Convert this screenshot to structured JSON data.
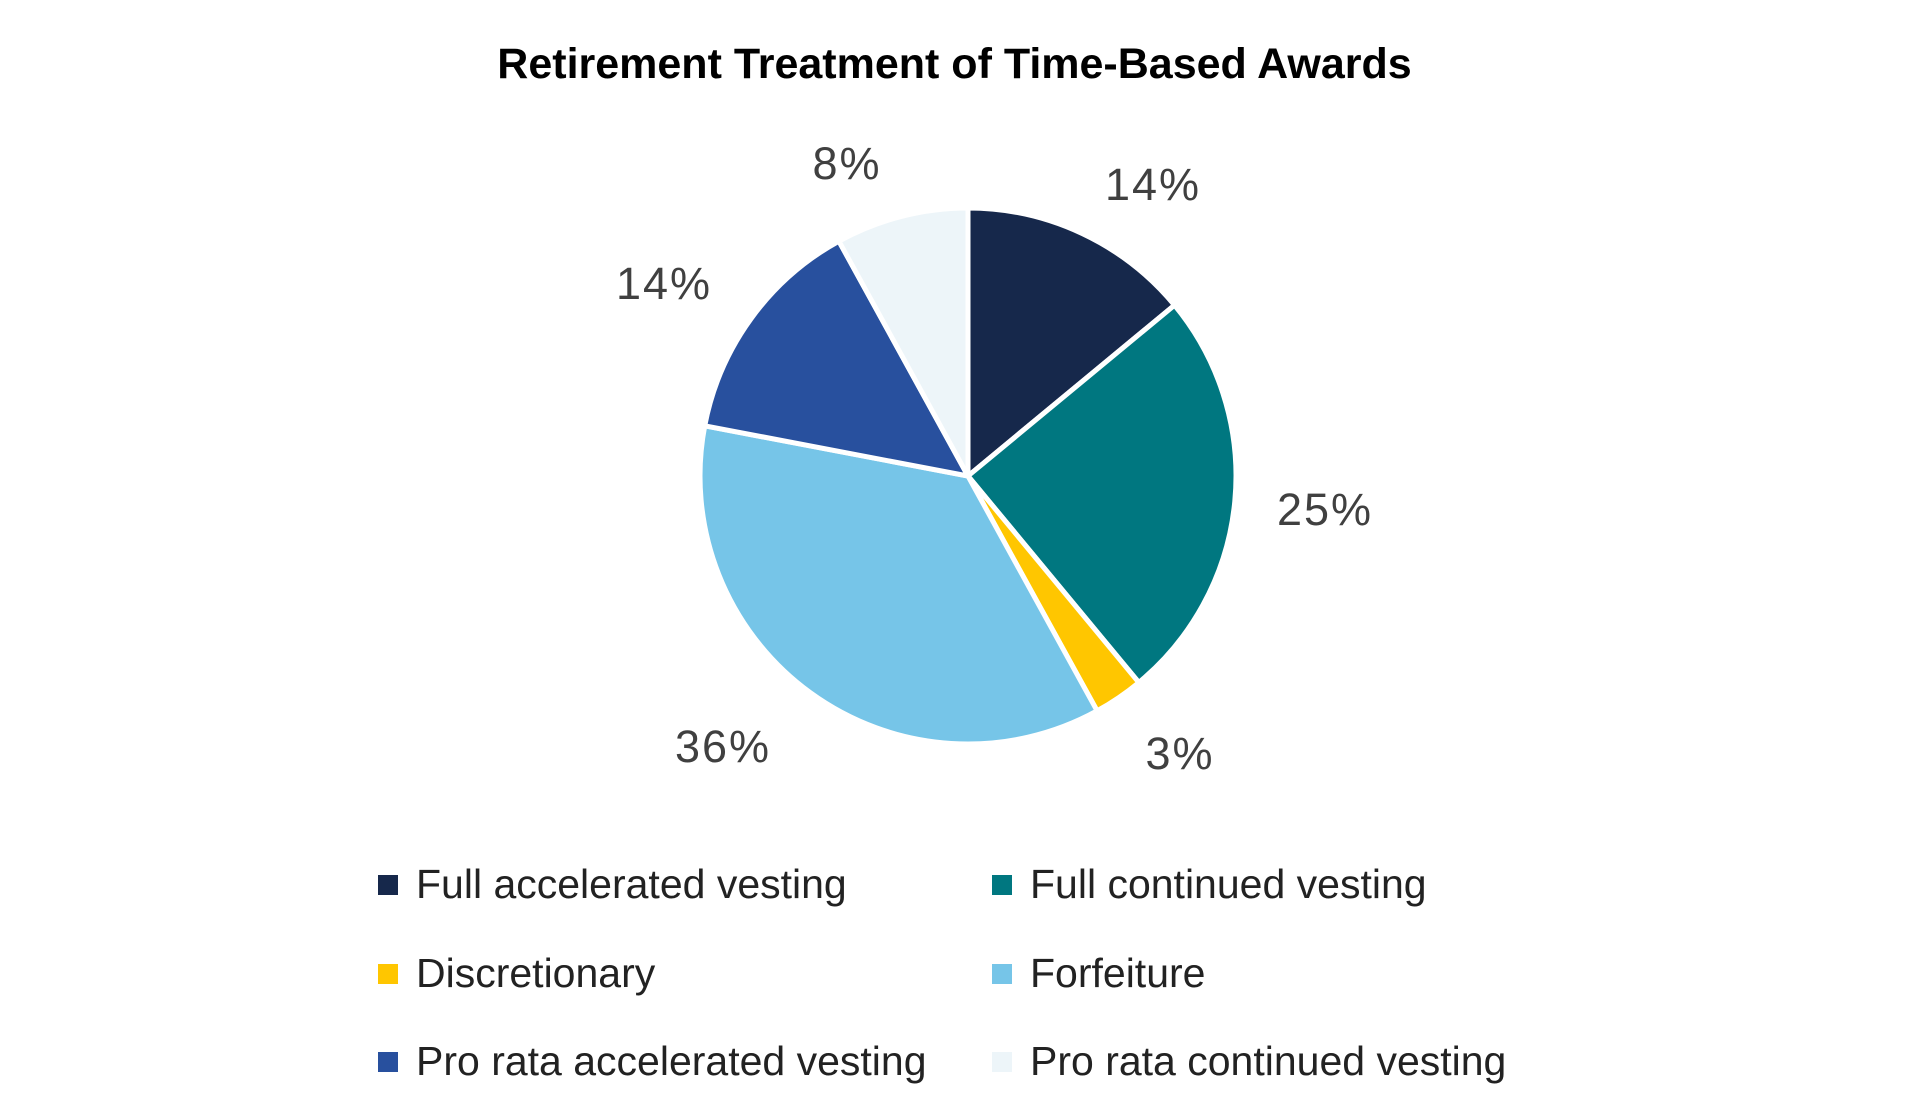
{
  "chart_data": {
    "type": "pie",
    "title": "Retirement Treatment of Time-Based Awards",
    "slices": [
      {
        "name": "Full accelerated vesting",
        "value": 14,
        "label": "14%",
        "color": "#16284b"
      },
      {
        "name": "Full continued vesting",
        "value": 25,
        "label": "25%",
        "color": "#007780"
      },
      {
        "name": "Discretionary",
        "value": 3,
        "label": "3%",
        "color": "#ffc600"
      },
      {
        "name": "Forfeiture",
        "value": 36,
        "label": "36%",
        "color": "#76c5e8"
      },
      {
        "name": "Pro rata accelerated vesting",
        "value": 14,
        "label": "14%",
        "color": "#28509e"
      },
      {
        "name": "Pro rata continued vesting",
        "value": 8,
        "label": "8%",
        "color": "#edf5f9"
      }
    ],
    "legend_position": "bottom",
    "legend_columns": 2
  }
}
